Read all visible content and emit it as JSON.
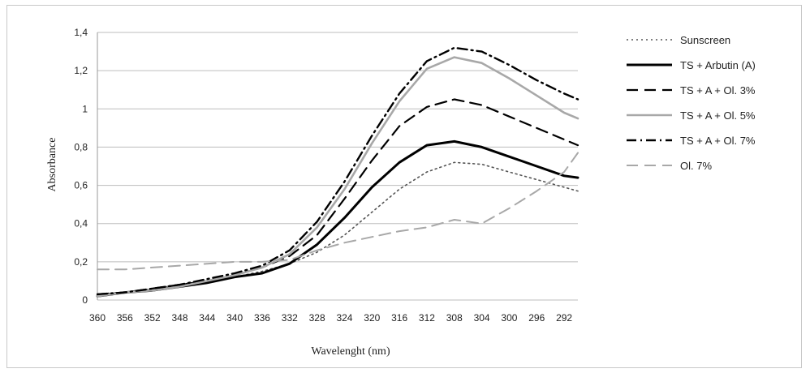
{
  "chart_data": {
    "type": "line",
    "title": "",
    "xlabel": "Wavelenght (nm)",
    "ylabel": "Absorbance",
    "ylim": [
      0,
      1.4
    ],
    "yticks": [
      "0",
      "0,2",
      "0,4",
      "0,6",
      "0,8",
      "1",
      "1,2",
      "1,4"
    ],
    "x": [
      360,
      356,
      352,
      348,
      344,
      340,
      336,
      332,
      328,
      324,
      320,
      316,
      312,
      308,
      304,
      300,
      296,
      292,
      290
    ],
    "xtick_labels": [
      "360",
      "356",
      "352",
      "348",
      "344",
      "340",
      "336",
      "332",
      "328",
      "324",
      "320",
      "316",
      "312",
      "308",
      "304",
      "300",
      "296",
      "292"
    ],
    "grid": true,
    "legend_position": "right",
    "series": [
      {
        "name": "Sunscreen",
        "color": "#555555",
        "dash": "2,4",
        "width": 1.6,
        "values": [
          0.02,
          0.04,
          0.06,
          0.08,
          0.1,
          0.12,
          0.15,
          0.19,
          0.25,
          0.34,
          0.46,
          0.58,
          0.67,
          0.72,
          0.71,
          0.67,
          0.63,
          0.59,
          0.57
        ]
      },
      {
        "name": "TS + Arbutin (A)",
        "color": "#000000",
        "dash": "",
        "width": 3,
        "values": [
          0.02,
          0.04,
          0.05,
          0.07,
          0.09,
          0.12,
          0.14,
          0.19,
          0.29,
          0.43,
          0.59,
          0.72,
          0.81,
          0.83,
          0.8,
          0.75,
          0.7,
          0.65,
          0.64
        ]
      },
      {
        "name": "TS + A + Ol. 3%",
        "color": "#000000",
        "dash": "14,8",
        "width": 2.2,
        "values": [
          0.03,
          0.04,
          0.06,
          0.08,
          0.1,
          0.13,
          0.17,
          0.23,
          0.34,
          0.53,
          0.73,
          0.91,
          1.01,
          1.05,
          1.02,
          0.96,
          0.9,
          0.84,
          0.81
        ]
      },
      {
        "name": "TS + A + Ol. 5%",
        "color": "#a8a8a8",
        "dash": "",
        "width": 2.6,
        "values": [
          0.02,
          0.04,
          0.05,
          0.07,
          0.1,
          0.13,
          0.17,
          0.24,
          0.38,
          0.58,
          0.82,
          1.04,
          1.21,
          1.27,
          1.24,
          1.16,
          1.07,
          0.98,
          0.95
        ]
      },
      {
        "name": "TS + A + Ol. 7%",
        "color": "#000000",
        "dash": "12,5,2,5",
        "width": 2.4,
        "values": [
          0.03,
          0.04,
          0.06,
          0.08,
          0.11,
          0.14,
          0.18,
          0.26,
          0.41,
          0.62,
          0.86,
          1.08,
          1.25,
          1.32,
          1.3,
          1.23,
          1.15,
          1.08,
          1.05
        ]
      },
      {
        "name": "Ol. 7%",
        "color": "#a8a8a8",
        "dash": "14,8",
        "width": 2,
        "values": [
          0.16,
          0.16,
          0.17,
          0.18,
          0.19,
          0.2,
          0.2,
          0.21,
          0.26,
          0.3,
          0.33,
          0.36,
          0.38,
          0.42,
          0.4,
          0.48,
          0.57,
          0.67,
          0.77
        ]
      }
    ]
  }
}
